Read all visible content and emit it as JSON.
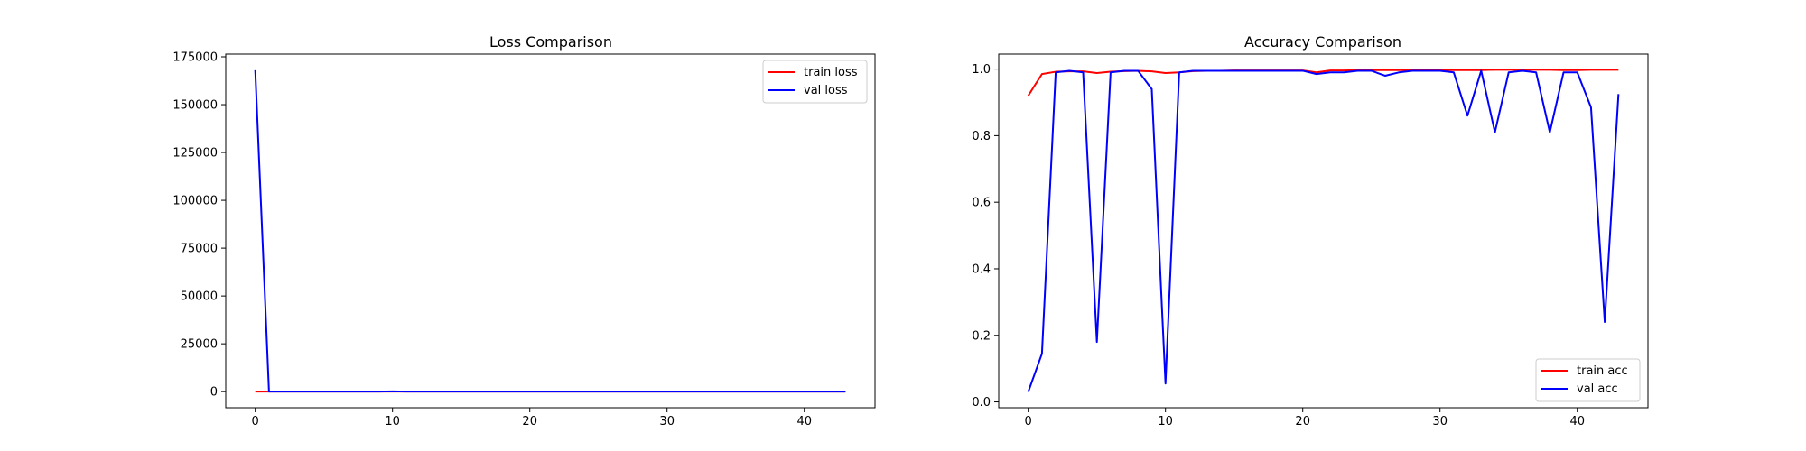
{
  "chart_data": [
    {
      "type": "line",
      "title": "Loss Comparison",
      "xlabel": "",
      "ylabel": "",
      "xlim": [
        -2.15,
        45.15
      ],
      "ylim": [
        -8405,
        176420
      ],
      "xticks": [
        0,
        10,
        20,
        30,
        40
      ],
      "yticks": [
        0,
        25000,
        50000,
        75000,
        100000,
        125000,
        150000,
        175000
      ],
      "grid": false,
      "legend_position": "top-right",
      "x": [
        0,
        1,
        2,
        3,
        4,
        5,
        6,
        7,
        8,
        9,
        10,
        11,
        12,
        13,
        14,
        15,
        16,
        17,
        18,
        19,
        20,
        21,
        22,
        23,
        24,
        25,
        26,
        27,
        28,
        29,
        30,
        31,
        32,
        33,
        34,
        35,
        36,
        37,
        38,
        39,
        40,
        41,
        42,
        43
      ],
      "series": [
        {
          "name": "train loss",
          "color": "#ff0000",
          "values": [
            0.3,
            0.05,
            0.02,
            0.02,
            0.02,
            0.03,
            0.02,
            0.02,
            0.02,
            0.02,
            0.03,
            0.02,
            0.01,
            0.01,
            0.01,
            0.01,
            0.01,
            0.01,
            0.01,
            0.01,
            0.01,
            0.02,
            0.01,
            0.01,
            0.01,
            0.01,
            0.01,
            0.01,
            0.01,
            0.01,
            0.01,
            0.01,
            0.01,
            0.01,
            0.01,
            0.01,
            0.01,
            0.01,
            0.01,
            0.01,
            0.01,
            0.01,
            0.01,
            0.01
          ]
        },
        {
          "name": "val loss",
          "color": "#0000ff",
          "values": [
            168000,
            40,
            0.1,
            0.1,
            0.1,
            20,
            0.1,
            0.1,
            0.1,
            0.5,
            150,
            0.1,
            0.1,
            0.1,
            0.1,
            0.1,
            0.1,
            0.1,
            0.1,
            0.1,
            0.1,
            0.1,
            0.1,
            0.1,
            0.1,
            0.1,
            0.1,
            0.1,
            0.1,
            0.1,
            0.1,
            0.1,
            1,
            0.1,
            2,
            0.1,
            0.1,
            0.1,
            2,
            0.1,
            0.1,
            1,
            10,
            1
          ]
        }
      ]
    },
    {
      "type": "line",
      "title": "Accuracy Comparison",
      "xlabel": "",
      "ylabel": "",
      "xlim": [
        -2.15,
        45.15
      ],
      "ylim": [
        -0.0175,
        1.045
      ],
      "xticks": [
        0,
        10,
        20,
        30,
        40
      ],
      "yticks": [
        "0.0",
        "0.2",
        "0.4",
        "0.6",
        "0.8",
        "1.0"
      ],
      "grid": false,
      "legend_position": "bottom-right",
      "x": [
        0,
        1,
        2,
        3,
        4,
        5,
        6,
        7,
        8,
        9,
        10,
        11,
        12,
        13,
        14,
        15,
        16,
        17,
        18,
        19,
        20,
        21,
        22,
        23,
        24,
        25,
        26,
        27,
        28,
        29,
        30,
        31,
        32,
        33,
        34,
        35,
        36,
        37,
        38,
        39,
        40,
        41,
        42,
        43
      ],
      "series": [
        {
          "name": "train acc",
          "color": "#ff0000",
          "values": [
            0.92,
            0.985,
            0.992,
            0.993,
            0.993,
            0.988,
            0.992,
            0.994,
            0.995,
            0.993,
            0.988,
            0.99,
            0.994,
            0.995,
            0.995,
            0.996,
            0.996,
            0.996,
            0.996,
            0.996,
            0.996,
            0.99,
            0.996,
            0.996,
            0.997,
            0.997,
            0.997,
            0.997,
            0.997,
            0.997,
            0.997,
            0.997,
            0.997,
            0.997,
            0.998,
            0.998,
            0.998,
            0.998,
            0.998,
            0.997,
            0.997,
            0.998,
            0.998,
            0.998
          ]
        },
        {
          "name": "val acc",
          "color": "#0000ff",
          "values": [
            0.03,
            0.145,
            0.99,
            0.995,
            0.99,
            0.18,
            0.99,
            0.995,
            0.995,
            0.94,
            0.055,
            0.99,
            0.995,
            0.995,
            0.995,
            0.995,
            0.995,
            0.995,
            0.995,
            0.995,
            0.995,
            0.985,
            0.99,
            0.99,
            0.995,
            0.995,
            0.98,
            0.99,
            0.995,
            0.995,
            0.995,
            0.99,
            0.86,
            0.995,
            0.81,
            0.99,
            0.995,
            0.99,
            0.81,
            0.99,
            0.99,
            0.885,
            0.24,
            0.925
          ]
        }
      ]
    }
  ]
}
